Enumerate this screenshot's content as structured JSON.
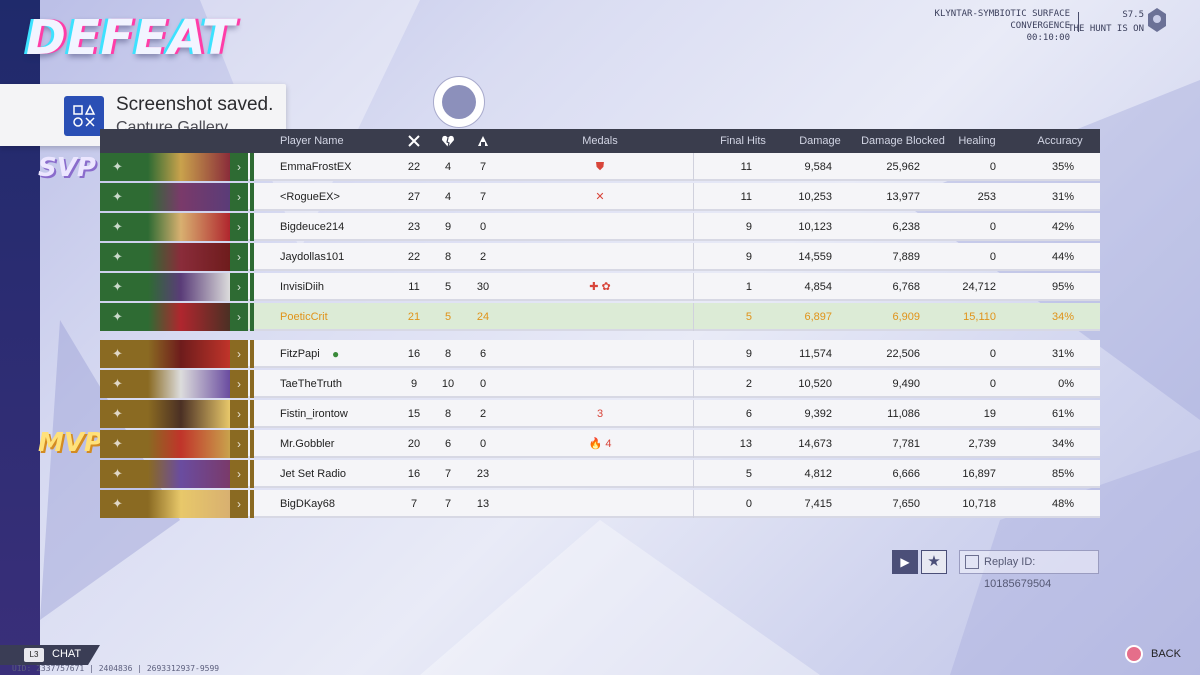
{
  "result_title": "DEFEAT",
  "match": {
    "map_line1": "KLYNTAR-SYMBIOTIC SURFACE",
    "map_line2": "CONVERGENCE",
    "duration": "00:10:00",
    "season": "S7.5",
    "season_name": "THE HUNT IS ON"
  },
  "toast": {
    "title": "Screenshot saved.",
    "subtitle": "Capture Gallery"
  },
  "table": {
    "headers": {
      "player": "Player Name",
      "kills_icon": "crossed-swords-icon",
      "deaths_icon": "broken-heart-icon",
      "assists_icon": "assist-icon",
      "medals": "Medals",
      "final_hits": "Final Hits",
      "damage": "Damage",
      "damage_blocked": "Damage Blocked",
      "healing": "Healing",
      "accuracy": "Accuracy"
    },
    "team_colors": {
      "allies": "#2e6b33",
      "enemies": "#8a6a22"
    },
    "allies": [
      {
        "name": "EmmaFrostEX",
        "k": "22",
        "d": "4",
        "a": "7",
        "medals": "⛊",
        "fh": "11",
        "dmg": "9,584",
        "blk": "25,962",
        "heal": "0",
        "acc": "35%"
      },
      {
        "name": "<RogueEX>",
        "k": "27",
        "d": "4",
        "a": "7",
        "medals": "✕",
        "fh": "11",
        "dmg": "10,253",
        "blk": "13,977",
        "heal": "253",
        "acc": "31%"
      },
      {
        "name": "Bigdeuce214",
        "k": "23",
        "d": "9",
        "a": "0",
        "medals": "",
        "fh": "9",
        "dmg": "10,123",
        "blk": "6,238",
        "heal": "0",
        "acc": "42%"
      },
      {
        "name": "Jaydollas101",
        "k": "22",
        "d": "8",
        "a": "2",
        "medals": "",
        "fh": "9",
        "dmg": "14,559",
        "blk": "7,889",
        "heal": "0",
        "acc": "44%"
      },
      {
        "name": "InvisiDiih",
        "k": "11",
        "d": "5",
        "a": "30",
        "medals": "✚ ✿",
        "fh": "1",
        "dmg": "4,854",
        "blk": "6,768",
        "heal": "24,712",
        "acc": "95%"
      },
      {
        "name": "PoeticCrit",
        "k": "21",
        "d": "5",
        "a": "24",
        "medals": "",
        "fh": "5",
        "dmg": "6,897",
        "blk": "6,909",
        "heal": "15,110",
        "acc": "34%"
      }
    ],
    "enemies": [
      {
        "name": "FitzPapi",
        "k": "16",
        "d": "8",
        "a": "6",
        "medals": "",
        "fh": "9",
        "dmg": "11,574",
        "blk": "22,506",
        "heal": "0",
        "acc": "31%"
      },
      {
        "name": "TaeTheTruth",
        "k": "9",
        "d": "10",
        "a": "0",
        "medals": "",
        "fh": "2",
        "dmg": "10,520",
        "blk": "9,490",
        "heal": "0",
        "acc": "0%"
      },
      {
        "name": "Fistin_irontow",
        "k": "15",
        "d": "8",
        "a": "2",
        "medals": "3",
        "fh": "6",
        "dmg": "9,392",
        "blk": "11,086",
        "heal": "19",
        "acc": "61%"
      },
      {
        "name": "Mr.Gobbler",
        "k": "20",
        "d": "6",
        "a": "0",
        "medals": "🔥 4",
        "fh": "13",
        "dmg": "14,673",
        "blk": "7,781",
        "heal": "2,739",
        "acc": "34%"
      },
      {
        "name": "Jet Set Radio",
        "k": "16",
        "d": "7",
        "a": "23",
        "medals": "",
        "fh": "5",
        "dmg": "4,812",
        "blk": "6,666",
        "heal": "16,897",
        "acc": "85%"
      },
      {
        "name": "BigDKay68",
        "k": "7",
        "d": "7",
        "a": "13",
        "medals": "",
        "fh": "0",
        "dmg": "7,415",
        "blk": "7,650",
        "heal": "10,718",
        "acc": "48%"
      }
    ]
  },
  "badges": {
    "svp": "SVP",
    "mvp": "MVP"
  },
  "replay": {
    "id_label": "Replay ID: 10185679504"
  },
  "footer": {
    "chat_key": "L3",
    "chat": "CHAT",
    "uid": "UID: 2337757671 | 2404836 | 2693312937-9599",
    "back": "BACK"
  }
}
